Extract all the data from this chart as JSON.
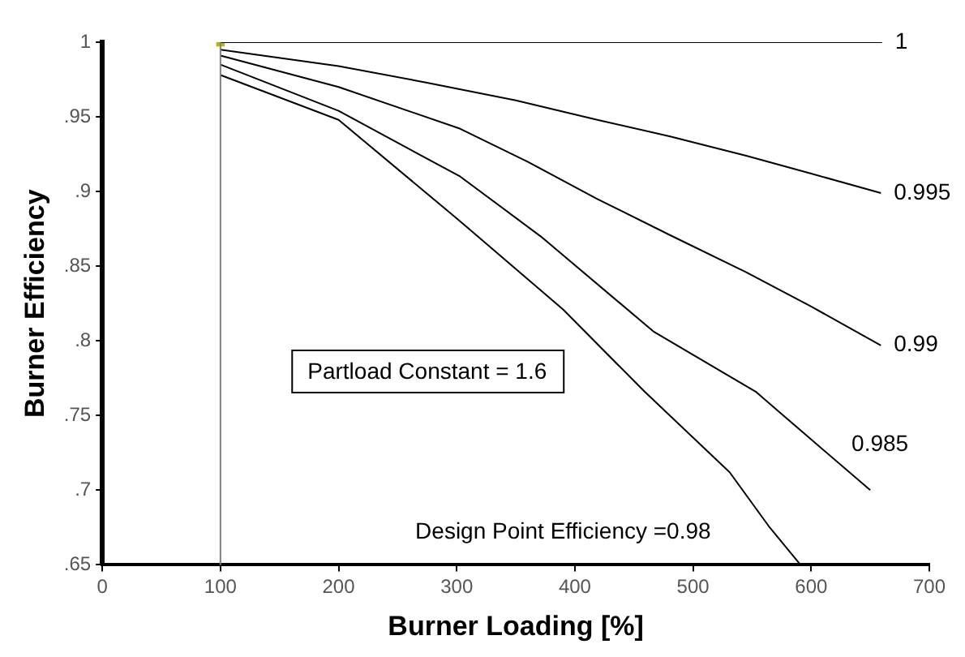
{
  "chart_data": {
    "type": "line",
    "xlabel": "Burner Loading [%]",
    "ylabel": "Burner Efficiency",
    "xlim": [
      0,
      700
    ],
    "xticks": [
      0,
      100,
      200,
      300,
      400,
      500,
      600,
      700
    ],
    "ylim": [
      0.65,
      1
    ],
    "yticks": [
      {
        "value": 0.65,
        "label": ".65"
      },
      {
        "value": 0.7,
        "label": ".7"
      },
      {
        "value": 0.75,
        "label": ".75"
      },
      {
        "value": 0.8,
        "label": ".8"
      },
      {
        "value": 0.85,
        "label": ".85"
      },
      {
        "value": 0.9,
        "label": ".9"
      },
      {
        "value": 0.95,
        "label": ".95"
      },
      {
        "value": 1,
        "label": "1"
      }
    ],
    "grid": false,
    "legend": false,
    "marker": "none",
    "line_style": "solid",
    "series": [
      {
        "name": "1",
        "color": "#000000",
        "x": [
          100,
          660
        ],
        "values": [
          1,
          1
        ]
      },
      {
        "name": "0.995",
        "color": "#000000",
        "x": [
          100,
          200,
          274,
          350,
          419,
          480,
          545,
          600,
          659
        ],
        "values": [
          0.995,
          0.984,
          0.973,
          0.961,
          0.948,
          0.937,
          0.924,
          0.912,
          0.899
        ]
      },
      {
        "name": "0.99",
        "color": "#000000",
        "x": [
          100,
          200,
          303,
          360,
          419,
          480,
          545,
          600,
          659
        ],
        "values": [
          0.991,
          0.97,
          0.942,
          0.92,
          0.895,
          0.871,
          0.846,
          0.823,
          0.797
        ]
      },
      {
        "name": "0.985",
        "color": "#000000",
        "x": [
          100,
          200,
          303,
          371,
          467,
          553,
          597,
          650
        ],
        "values": [
          0.985,
          0.954,
          0.91,
          0.87,
          0.806,
          0.766,
          0.736,
          0.7
        ]
      },
      {
        "color": "#000000",
        "x": [
          100,
          200,
          303,
          390,
          459,
          531,
          564,
          591
        ],
        "values": [
          0.978,
          0.948,
          0.88,
          0.821,
          0.766,
          0.712,
          0.676,
          0.65
        ]
      },
      {
        "type": "scatter",
        "color": "#b8b800",
        "marker": "square",
        "x": [
          100
        ],
        "values": [
          1
        ]
      }
    ],
    "ref_lines": [
      {
        "axis": "x",
        "value": 100,
        "color": "#808080"
      }
    ],
    "annotations": [
      "Partload Constant = 1.6",
      "Design Point Efficiency =0.98"
    ]
  }
}
